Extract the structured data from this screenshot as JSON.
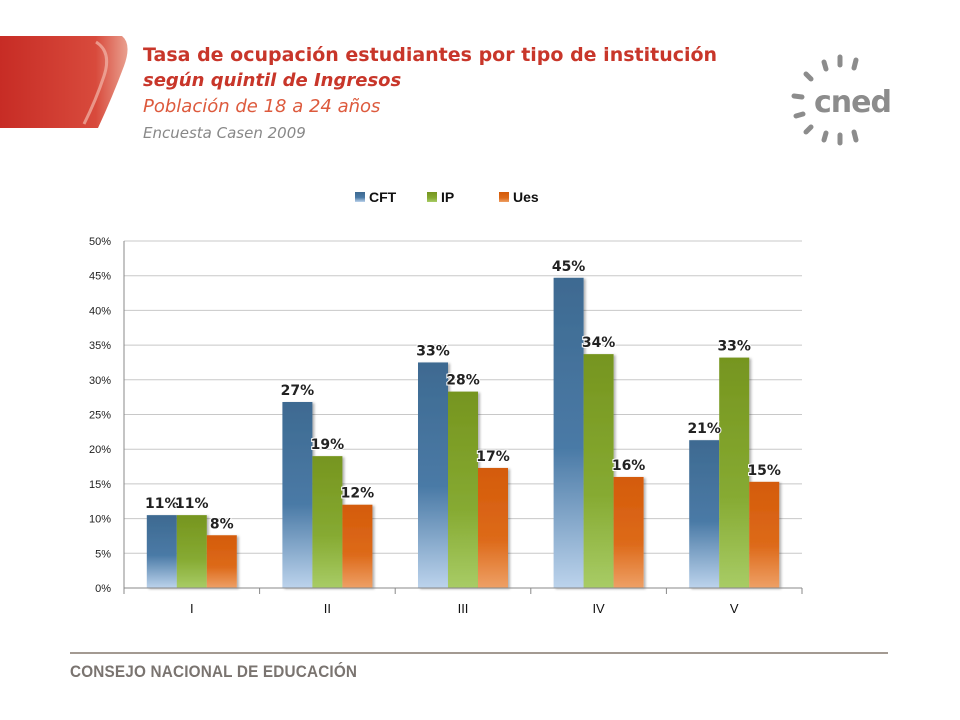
{
  "header": {
    "title": "Tasa de ocupación estudiantes por tipo de institución",
    "subtitle1": "según quintil de Ingresos",
    "subtitle2": "Población de 18 a 24 años",
    "subtitle3": "Encuesta Casen 2009"
  },
  "logo": {
    "text": "cned"
  },
  "footer": {
    "text": "CONSEJO NACIONAL DE EDUCACIÓN"
  },
  "colors": {
    "brand_red": "#c8362a",
    "cft": "#3e6a91",
    "ip": "#7a9a2a",
    "ues": "#d8600e",
    "footer_gray": "#7a7470"
  },
  "chart_data": {
    "type": "bar",
    "title": "",
    "xlabel": "",
    "ylabel": "",
    "categories": [
      "I",
      "II",
      "III",
      "IV",
      "V"
    ],
    "series": [
      {
        "name": "CFT",
        "values": [
          10.5,
          26.8,
          32.5,
          44.7,
          21.3
        ],
        "labels": [
          "11%",
          "27%",
          "33%",
          "45%",
          "21%"
        ]
      },
      {
        "name": "IP",
        "values": [
          10.5,
          19.0,
          28.3,
          33.7,
          33.2
        ],
        "labels": [
          "11%",
          "19%",
          "28%",
          "34%",
          "33%"
        ]
      },
      {
        "name": "Ues",
        "values": [
          7.6,
          12.0,
          17.3,
          16.0,
          15.3
        ],
        "labels": [
          "8%",
          "12%",
          "17%",
          "16%",
          "15%"
        ]
      }
    ],
    "yticks": [
      "0%",
      "5%",
      "10%",
      "15%",
      "20%",
      "25%",
      "30%",
      "35%",
      "40%",
      "45%",
      "50%"
    ],
    "ylim": [
      0,
      50
    ],
    "grid": true,
    "legend": "top-center"
  }
}
